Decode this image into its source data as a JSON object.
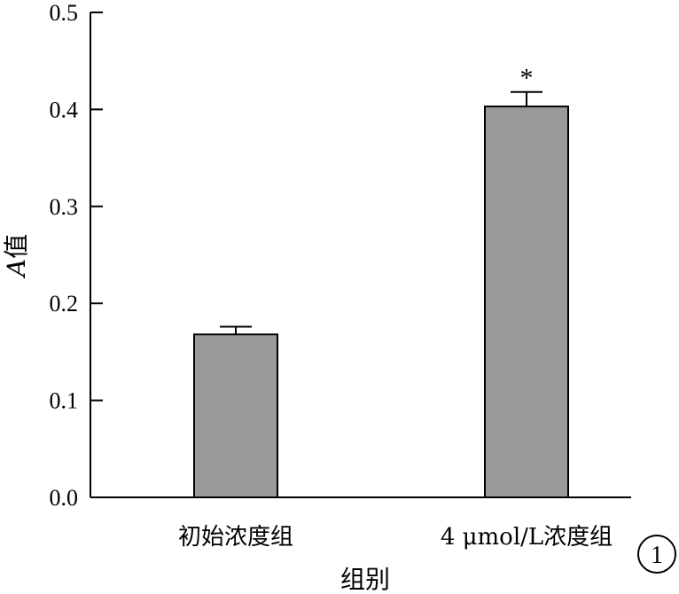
{
  "chart_data": {
    "type": "bar",
    "categories": [
      "初始浓度组",
      "4 μmol/L浓度组"
    ],
    "values": [
      0.168,
      0.403
    ],
    "errors": [
      0.008,
      0.015
    ],
    "significance": [
      "",
      "*"
    ],
    "xlabel": "组别",
    "ylabel_italic": "A",
    "ylabel_rest": "值",
    "ylim": [
      0,
      0.5
    ],
    "yticks": [
      "0.0",
      "0.1",
      "0.2",
      "0.3",
      "0.4",
      "0.5"
    ],
    "annotation": "1",
    "colors": {
      "bar": "#999999",
      "axis": "#000000"
    },
    "grid": false
  }
}
